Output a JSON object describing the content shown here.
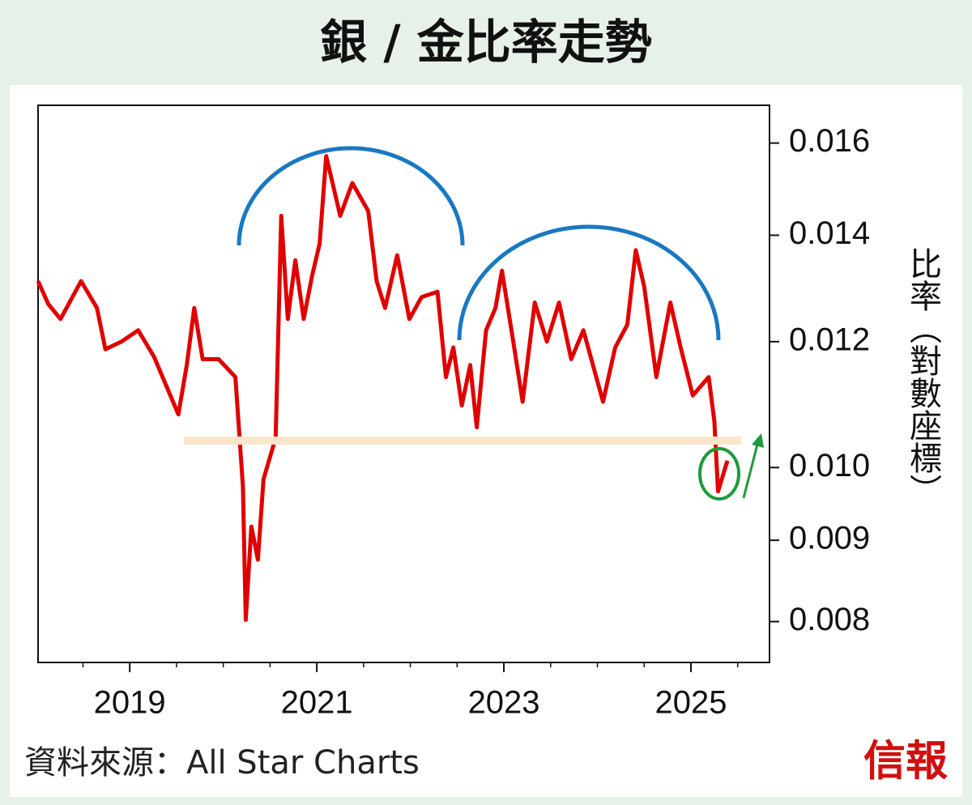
{
  "chart_data": {
    "type": "line",
    "title": "銀 / 金比率走勢",
    "y_label": "比率（對數座標）",
    "source": "資料來源：All Star Charts",
    "logo": "信報",
    "log_y": true,
    "y_axis_side": "right",
    "x": [
      2018.02,
      2018.13,
      2018.26,
      2018.48,
      2018.65,
      2018.74,
      2018.91,
      2019.09,
      2019.26,
      2019.52,
      2019.61,
      2019.69,
      2019.78,
      2019.95,
      2020.13,
      2020.21,
      2020.24,
      2020.3,
      2020.37,
      2020.43,
      2020.56,
      2020.62,
      2020.69,
      2020.77,
      2020.86,
      2020.95,
      2021.03,
      2021.1,
      2021.18,
      2021.25,
      2021.38,
      2021.55,
      2021.64,
      2021.73,
      2021.86,
      2021.99,
      2022.12,
      2022.29,
      2022.38,
      2022.46,
      2022.55,
      2022.64,
      2022.71,
      2022.81,
      2022.91,
      2022.98,
      2023.11,
      2023.2,
      2023.33,
      2023.46,
      2023.59,
      2023.72,
      2023.85,
      2024.06,
      2024.19,
      2024.32,
      2024.41,
      2024.5,
      2024.63,
      2024.78,
      2024.89,
      2025.02,
      2025.19,
      2025.25,
      2025.29,
      2025.39
    ],
    "series": [
      {
        "name": "銀 / 金比率",
        "color": "#e00000",
        "values": [
          0.0131,
          0.01267,
          0.0124,
          0.0131,
          0.0126,
          0.01187,
          0.012,
          0.0122,
          0.01174,
          0.0108,
          0.0116,
          0.0126,
          0.0117,
          0.0117,
          0.0114,
          0.00973,
          0.00802,
          0.00918,
          0.00875,
          0.00983,
          0.01044,
          0.0144,
          0.0124,
          0.0135,
          0.0124,
          0.0132,
          0.01383,
          0.0157,
          0.015,
          0.0144,
          0.0151,
          0.0145,
          0.0131,
          0.0126,
          0.0136,
          0.0124,
          0.0128,
          0.0129,
          0.0114,
          0.0119,
          0.01094,
          0.0116,
          0.0106,
          0.0122,
          0.0126,
          0.0133,
          0.0119,
          0.011,
          0.0127,
          0.012,
          0.0127,
          0.0117,
          0.0122,
          0.011,
          0.0119,
          0.0123,
          0.0137,
          0.013,
          0.0114,
          0.0127,
          0.0119,
          0.0111,
          0.0114,
          0.0107,
          0.00966,
          0.0101
        ]
      }
    ],
    "xlim": [
      2018.02,
      2025.84
    ],
    "xticks": [
      2019,
      2021,
      2023,
      2025
    ],
    "xminorticks": [
      2018.5,
      2019.5,
      2020,
      2020.5,
      2021.5,
      2022,
      2022.5,
      2023.5,
      2024,
      2024.5,
      2025.5
    ],
    "ylim": [
      0.00754,
      0.0169
    ],
    "yticks": [
      0.008,
      0.009,
      {
        "value": 0.01,
        "label": "0.010"
      },
      0.012,
      0.014,
      0.016
    ]
  }
}
